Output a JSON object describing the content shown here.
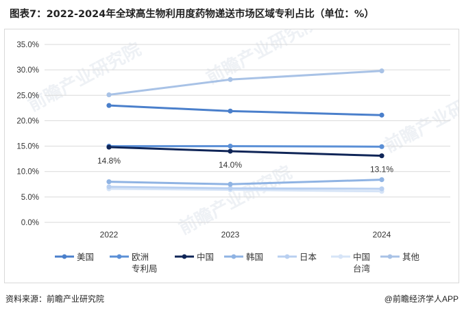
{
  "title": "图表7：2022-2024年全球高生物利用度药物递送市场区域专利占比（单位：%）",
  "watermark": "前瞻产业研究院",
  "footer": {
    "source": "资料来源：前瞻产业研究院",
    "brand": "@前瞻经济学人APP"
  },
  "chart_data": {
    "type": "line",
    "title": "图表7：2022-2024年全球高生物利用度药物递送市场区域专利占比（单位：%）",
    "x": [
      "2022",
      "2023",
      "2024"
    ],
    "ylim": [
      0,
      35
    ],
    "yticks": [
      "0.0%",
      "5.0%",
      "10.0%",
      "15.0%",
      "20.0%",
      "25.0%",
      "30.0%",
      "35.0%"
    ],
    "grid": true,
    "legend_position": "bottom",
    "series": [
      {
        "name": "美国",
        "values": [
          23.0,
          21.9,
          21.1
        ],
        "color": "#4a7fcb",
        "labels": null
      },
      {
        "name": "欧洲专利局",
        "legend_lines": [
          "欧洲",
          "专利局"
        ],
        "values": [
          15.0,
          15.0,
          14.9
        ],
        "color": "#5a8fd6",
        "labels": null
      },
      {
        "name": "中国",
        "values": [
          14.8,
          14.0,
          13.1
        ],
        "color": "#0f2557",
        "labels": [
          "14.8%",
          "14.0%",
          "13.1%"
        ]
      },
      {
        "name": "韩国",
        "values": [
          8.0,
          7.5,
          8.4
        ],
        "color": "#8fb3e3",
        "labels": null
      },
      {
        "name": "日本",
        "values": [
          7.0,
          6.7,
          6.6
        ],
        "color": "#b8cff0",
        "labels": null
      },
      {
        "name": "中国台湾",
        "legend_lines": [
          "中国",
          "台湾"
        ],
        "values": [
          6.6,
          6.4,
          6.1
        ],
        "color": "#d6e4f7",
        "labels": null
      },
      {
        "name": "其他",
        "values": [
          25.1,
          28.1,
          29.8
        ],
        "color": "#a8c2e6",
        "labels": null
      }
    ]
  }
}
